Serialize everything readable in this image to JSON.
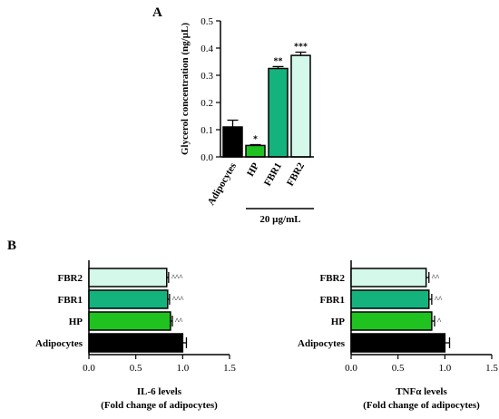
{
  "panel_labels": {
    "a": "A",
    "b": "B"
  },
  "chart_data": [
    {
      "type": "bar",
      "orientation": "vertical",
      "panel": "A",
      "categories": [
        "Adipocytes",
        "HP",
        "FBR1",
        "FBR2"
      ],
      "values": [
        0.11,
        0.042,
        0.325,
        0.373
      ],
      "errors": [
        0.025,
        0.003,
        0.007,
        0.012
      ],
      "colors": [
        "#000000",
        "#1fc21f",
        "#14b37d",
        "#d4f8ea"
      ],
      "significance": [
        "",
        "*",
        "**",
        "***"
      ],
      "ylabel": "Glycerol concentration (ng/µL)",
      "ylim": [
        0,
        0.5
      ],
      "yticks": [
        "0.0",
        "0.1",
        "0.2",
        "0.3",
        "0.4",
        "0.5"
      ],
      "group_label": "20 µg/mL"
    },
    {
      "type": "bar",
      "orientation": "horizontal",
      "panel": "B-left",
      "categories": [
        "Adipocytes",
        "HP",
        "FBR1",
        "FBR2"
      ],
      "values": [
        1.0,
        0.87,
        0.84,
        0.83
      ],
      "errors": [
        0.04,
        0.02,
        0.02,
        0.02
      ],
      "colors": [
        "#000000",
        "#1fc21f",
        "#14b37d",
        "#d4f8ea"
      ],
      "significance": [
        "",
        "^^",
        "^^^",
        "^^^"
      ],
      "xlabel": "IL-6 levels",
      "xlabel2": "(Fold change of adipocytes)",
      "xlim": [
        0,
        1.5
      ],
      "xticks": [
        "0.0",
        "0.5",
        "1.0",
        "1.5"
      ]
    },
    {
      "type": "bar",
      "orientation": "horizontal",
      "panel": "B-right",
      "categories": [
        "Adipocytes",
        "HP",
        "FBR1",
        "FBR2"
      ],
      "values": [
        1.0,
        0.86,
        0.83,
        0.8
      ],
      "errors": [
        0.05,
        0.03,
        0.03,
        0.03
      ],
      "colors": [
        "#000000",
        "#1fc21f",
        "#14b37d",
        "#d4f8ea"
      ],
      "significance": [
        "",
        "^",
        "^^",
        "^^"
      ],
      "xlabel": "TNFα levels",
      "xlabel2": "(Fold change of adipocytes)",
      "xlim": [
        0,
        1.5
      ],
      "xticks": [
        "0.0",
        "0.5",
        "1.0",
        "1.5"
      ]
    }
  ]
}
